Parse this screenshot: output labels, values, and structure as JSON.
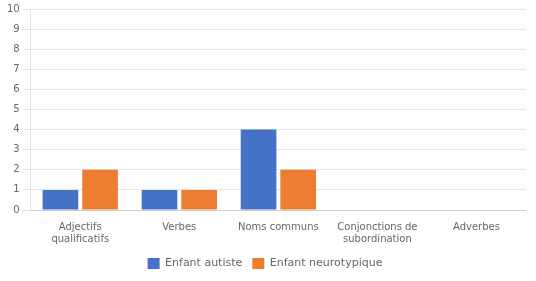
{
  "chart_data": {
    "type": "bar",
    "categories": [
      "Adjectifs\nqualificatifs",
      "Verbes",
      "Noms communs",
      "Conjonctions de\nsubordination",
      "Adverbes"
    ],
    "series": [
      {
        "name": "Enfant autiste",
        "color": "#4472C4",
        "values": [
          1,
          1,
          4,
          0,
          0
        ]
      },
      {
        "name": "Enfant neurotypique",
        "color": "#ED7D31",
        "values": [
          2,
          1,
          2,
          0,
          0
        ]
      }
    ],
    "ylim": [
      0,
      10
    ],
    "yticks": [
      0,
      1,
      2,
      3,
      4,
      5,
      6,
      7,
      8,
      9,
      10
    ],
    "grid": true,
    "legend": "bottom"
  }
}
